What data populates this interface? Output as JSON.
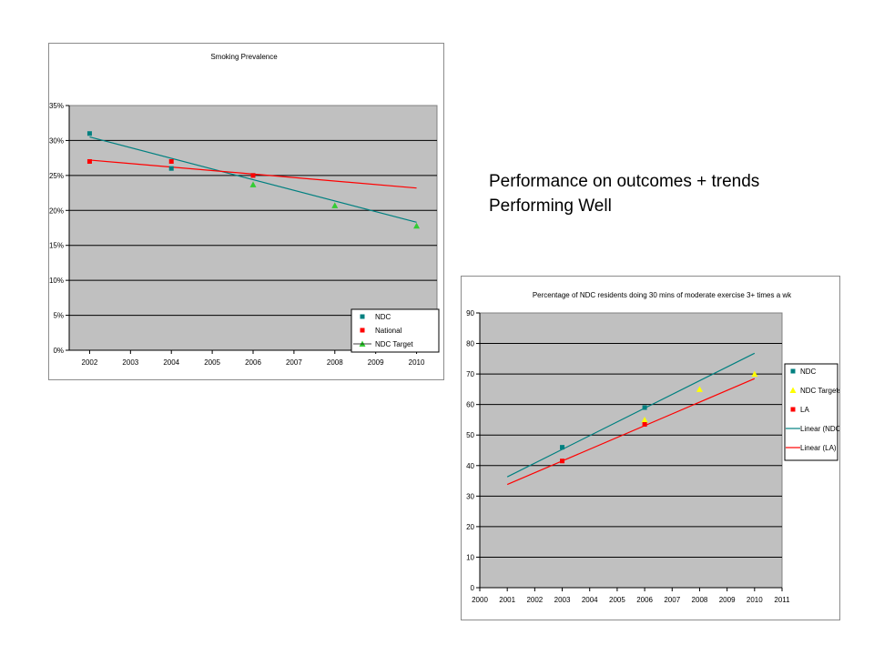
{
  "caption": {
    "line1": "Performance on outcomes + trends",
    "line2": "Performing Well"
  },
  "colors": {
    "plot_bg": "#c0c0c0",
    "teal": "#008080",
    "red": "#ff0000",
    "green": "#33cc33",
    "yellow": "#ffff00"
  },
  "chart_data": [
    {
      "type": "scatter",
      "title": "Smoking Prevalence",
      "categories": [
        "2002",
        "2003",
        "2004",
        "2005",
        "2006",
        "2007",
        "2008",
        "2009",
        "2010"
      ],
      "y_ticks": [
        "0%",
        "5%",
        "10%",
        "15%",
        "20%",
        "25%",
        "30%",
        "35%"
      ],
      "ylim": [
        0,
        35
      ],
      "grid": true,
      "legend_position": "bottom-right",
      "legend": [
        "NDC",
        "National",
        "NDC Target"
      ],
      "series": [
        {
          "name": "NDC",
          "color": "#008080",
          "marker": "square",
          "points": [
            [
              2002,
              31
            ],
            [
              2004,
              26
            ],
            [
              2006,
              25
            ]
          ]
        },
        {
          "name": "National",
          "color": "#ff0000",
          "marker": "square",
          "points": [
            [
              2002,
              27
            ],
            [
              2004,
              27
            ],
            [
              2006,
              25
            ]
          ]
        },
        {
          "name": "NDC Target",
          "color": "#33cc33",
          "marker": "triangle",
          "points": [
            [
              2006,
              23.7
            ],
            [
              2008,
              20.7
            ],
            [
              2010,
              17.8
            ]
          ]
        }
      ],
      "trendlines": [
        {
          "color": "#008080",
          "from": [
            2002,
            30.5
          ],
          "to": [
            2010,
            18.3
          ]
        },
        {
          "color": "#ff0000",
          "from": [
            2002,
            27.2
          ],
          "to": [
            2010,
            23.2
          ]
        }
      ]
    },
    {
      "type": "scatter",
      "title": "Percentage of NDC residents doing 30 mins of moderate exercise 3+ times a wk",
      "categories": [
        "2000",
        "2001",
        "2002",
        "2003",
        "2004",
        "2005",
        "2006",
        "2007",
        "2008",
        "2009",
        "2010",
        "2011"
      ],
      "y_ticks": [
        "0",
        "10",
        "20",
        "30",
        "40",
        "50",
        "60",
        "70",
        "80",
        "90"
      ],
      "ylim": [
        0,
        90
      ],
      "grid": true,
      "legend_position": "right",
      "legend": [
        "NDC",
        "NDC Targets",
        "LA",
        "Linear (NDC)",
        "Linear (LA)"
      ],
      "series": [
        {
          "name": "NDC",
          "color": "#008080",
          "marker": "square",
          "points": [
            [
              2003,
              46
            ],
            [
              2006,
              59
            ]
          ]
        },
        {
          "name": "NDC Targets",
          "color": "#ffff00",
          "marker": "triangle",
          "points": [
            [
              2006,
              55
            ],
            [
              2008,
              65
            ],
            [
              2010,
              70
            ]
          ]
        },
        {
          "name": "LA",
          "color": "#ff0000",
          "marker": "square",
          "points": [
            [
              2003,
              41.5
            ],
            [
              2006,
              53.5
            ]
          ]
        }
      ],
      "trendlines": [
        {
          "name": "Linear (NDC)",
          "color": "#008080",
          "from": [
            2001,
            36.3
          ],
          "to": [
            2010,
            76.8
          ]
        },
        {
          "name": "Linear (LA)",
          "color": "#ff0000",
          "from": [
            2001,
            33.8
          ],
          "to": [
            2010,
            68.5
          ]
        }
      ]
    }
  ]
}
